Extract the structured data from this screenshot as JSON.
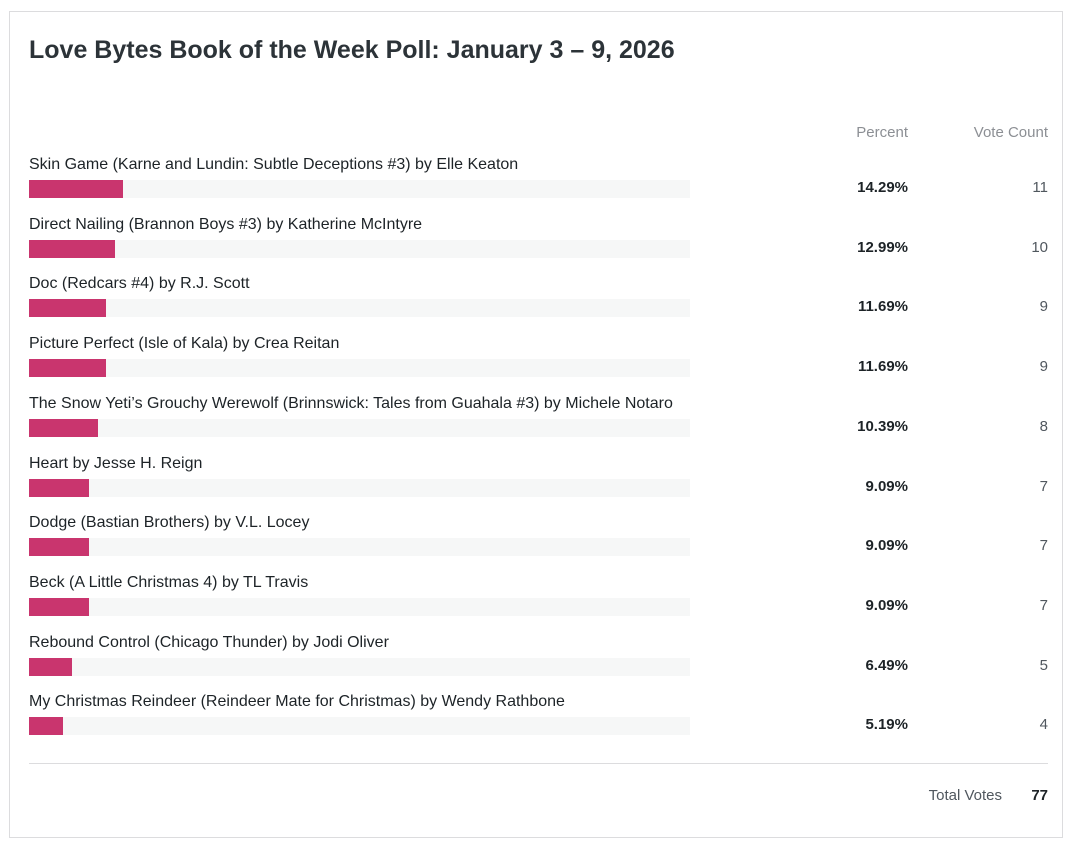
{
  "poll": {
    "title": "Love Bytes Book of the Week Poll: January 3 – 9, 2026",
    "percent_header": "Percent",
    "votes_header": "Vote Count",
    "total_label": "Total Votes",
    "total_value": "77",
    "bar_color": "#c9356e",
    "track_color": "#f6f7f7"
  },
  "chart_data": {
    "type": "bar",
    "orientation": "horizontal",
    "title": "Love Bytes Book of the Week Poll: January 3 – 9, 2026",
    "xlim": [
      0,
      100
    ],
    "categories": [
      "Skin Game (Karne and Lundin: Subtle Deceptions #3) by Elle Keaton",
      "Direct Nailing (Brannon Boys #3) by Katherine McIntyre",
      "Doc (Redcars #4) by R.J. Scott",
      "Picture Perfect (Isle of Kala) by Crea Reitan",
      "The Snow Yeti’s Grouchy Werewolf (Brinnswick: Tales from Guahala #3) by Michele Notaro",
      "Heart by Jesse H. Reign",
      "Dodge (Bastian Brothers) by V.L. Locey",
      "Beck (A Little Christmas 4) by TL Travis",
      "Rebound Control (Chicago Thunder) by Jodi Oliver",
      "My Christmas Reindeer (Reindeer Mate for Christmas) by Wendy Rathbone"
    ],
    "percent_labels": [
      "14.29%",
      "12.99%",
      "11.69%",
      "11.69%",
      "10.39%",
      "9.09%",
      "9.09%",
      "9.09%",
      "6.49%",
      "5.19%"
    ],
    "values": [
      14.29,
      12.99,
      11.69,
      11.69,
      10.39,
      9.09,
      9.09,
      9.09,
      6.49,
      5.19
    ],
    "votes": [
      "11",
      "10",
      "9",
      "9",
      "8",
      "7",
      "7",
      "7",
      "5",
      "4"
    ]
  }
}
